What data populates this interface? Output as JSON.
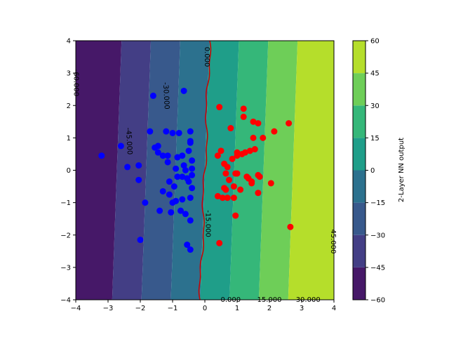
{
  "chart_data": {
    "type": "scatter",
    "subtype": "filled-contour-with-scatter",
    "title": "",
    "xlabel": "",
    "ylabel": "",
    "xlim": [
      -4,
      4
    ],
    "ylim": [
      -4,
      4
    ],
    "xticks": [
      "−4",
      "−3",
      "−2",
      "−1",
      "0",
      "1",
      "2",
      "3",
      "4"
    ],
    "yticks": [
      "−4",
      "−3",
      "−2",
      "−1",
      "0",
      "1",
      "2",
      "3",
      "4"
    ],
    "grid": false,
    "field": {
      "description_formula": "f(x,y) = a*x + b*y",
      "a": 16.5,
      "b": -0.6
    },
    "contour_levels": [
      -60,
      -45,
      -30,
      -15,
      0,
      15,
      30,
      45,
      60
    ],
    "contour_colors": [
      "#461868",
      "#433e85",
      "#38598c",
      "#2c718e",
      "#1f9e89",
      "#35b779",
      "#6ece58",
      "#b5de2b",
      "#dfe318"
    ],
    "colorbar": {
      "label": "2-Layer NN output",
      "range": [
        -60,
        60
      ],
      "ticks": [
        "−60",
        "−45",
        "−30",
        "−15",
        "0",
        "15",
        "30",
        "45",
        "60"
      ]
    },
    "contour_line_labels": [
      {
        "text": "0.000",
        "color": "#cc0000"
      },
      {
        "text": "-30.000",
        "color": "#000000"
      },
      {
        "text": "-60.000",
        "color": "#000000"
      },
      {
        "text": "-45.000",
        "color": "#000000"
      },
      {
        "text": "-15.000",
        "color": "#000000"
      },
      {
        "text": "0.000",
        "color": "#000000"
      },
      {
        "text": "15.000",
        "color": "#000000"
      },
      {
        "text": "30.000",
        "color": "#000000"
      },
      {
        "text": "45.000",
        "color": "#000000"
      }
    ],
    "series": [
      {
        "color": "#0000ff",
        "points": [
          [
            -3.2,
            0.45
          ],
          [
            -2.6,
            0.75
          ],
          [
            -2.4,
            0.1
          ],
          [
            -2.05,
            0.15
          ],
          [
            -2.05,
            -0.3
          ],
          [
            -2.0,
            -2.15
          ],
          [
            -1.85,
            -1.0
          ],
          [
            -1.6,
            2.3
          ],
          [
            -1.7,
            1.2
          ],
          [
            -1.55,
            0.7
          ],
          [
            -1.45,
            0.75
          ],
          [
            -1.45,
            0.55
          ],
          [
            -1.4,
            -1.25
          ],
          [
            -1.3,
            -0.65
          ],
          [
            -1.3,
            0.45
          ],
          [
            -1.2,
            1.2
          ],
          [
            -1.15,
            0.45
          ],
          [
            -1.15,
            0.25
          ],
          [
            -1.1,
            -0.35
          ],
          [
            -1.1,
            -0.75
          ],
          [
            -1.05,
            -1.3
          ],
          [
            -1.0,
            1.15
          ],
          [
            -1.0,
            -1.0
          ],
          [
            -0.95,
            -0.5
          ],
          [
            -0.9,
            -0.95
          ],
          [
            -0.9,
            0.05
          ],
          [
            -0.85,
            -0.2
          ],
          [
            -0.85,
            0.4
          ],
          [
            -0.8,
            1.15
          ],
          [
            -0.75,
            -1.25
          ],
          [
            -0.7,
            -0.9
          ],
          [
            -0.7,
            0.45
          ],
          [
            -0.7,
            -0.2
          ],
          [
            -0.65,
            2.45
          ],
          [
            -0.65,
            0.15
          ],
          [
            -0.6,
            0.0
          ],
          [
            -0.6,
            -1.35
          ],
          [
            -0.55,
            -0.25
          ],
          [
            -0.5,
            0.6
          ],
          [
            -0.5,
            -0.35
          ],
          [
            -0.55,
            -2.3
          ],
          [
            -0.45,
            -2.45
          ],
          [
            -0.45,
            -1.55
          ],
          [
            -0.45,
            1.2
          ],
          [
            -0.45,
            0.85
          ],
          [
            -0.4,
            0.3
          ],
          [
            -0.4,
            0.05
          ],
          [
            -0.4,
            -0.15
          ],
          [
            -0.4,
            -0.55
          ],
          [
            -0.45,
            -0.85
          ],
          [
            -0.45,
            0.9
          ]
        ]
      },
      {
        "color": "#ff0000",
        "points": [
          [
            0.45,
            1.95
          ],
          [
            0.45,
            -2.25
          ],
          [
            0.4,
            0.45
          ],
          [
            0.5,
            0.6
          ],
          [
            0.4,
            -0.8
          ],
          [
            0.55,
            -0.85
          ],
          [
            0.6,
            -0.55
          ],
          [
            0.6,
            0.2
          ],
          [
            0.65,
            -0.6
          ],
          [
            0.65,
            -0.1
          ],
          [
            0.7,
            -0.85
          ],
          [
            0.7,
            0.1
          ],
          [
            0.75,
            -0.3
          ],
          [
            0.8,
            1.3
          ],
          [
            0.85,
            0.35
          ],
          [
            0.9,
            -0.5
          ],
          [
            0.9,
            -0.85
          ],
          [
            0.95,
            -1.4
          ],
          [
            0.95,
            -0.1
          ],
          [
            1.0,
            0.45
          ],
          [
            1.0,
            0.55
          ],
          [
            1.0,
            -0.1
          ],
          [
            1.1,
            -0.6
          ],
          [
            1.15,
            0.5
          ],
          [
            1.2,
            1.65
          ],
          [
            1.2,
            1.9
          ],
          [
            1.25,
            0.55
          ],
          [
            1.3,
            -0.2
          ],
          [
            1.35,
            -0.25
          ],
          [
            1.4,
            0.6
          ],
          [
            1.45,
            -0.4
          ],
          [
            1.45,
            -0.35
          ],
          [
            1.5,
            1.0
          ],
          [
            1.5,
            1.5
          ],
          [
            1.55,
            0.65
          ],
          [
            1.65,
            1.45
          ],
          [
            1.65,
            -0.15
          ],
          [
            1.65,
            -0.7
          ],
          [
            1.7,
            -0.2
          ],
          [
            1.8,
            1.0
          ],
          [
            2.05,
            -0.4
          ],
          [
            2.15,
            1.2
          ],
          [
            2.6,
            1.45
          ],
          [
            2.65,
            -1.75
          ]
        ]
      }
    ]
  }
}
